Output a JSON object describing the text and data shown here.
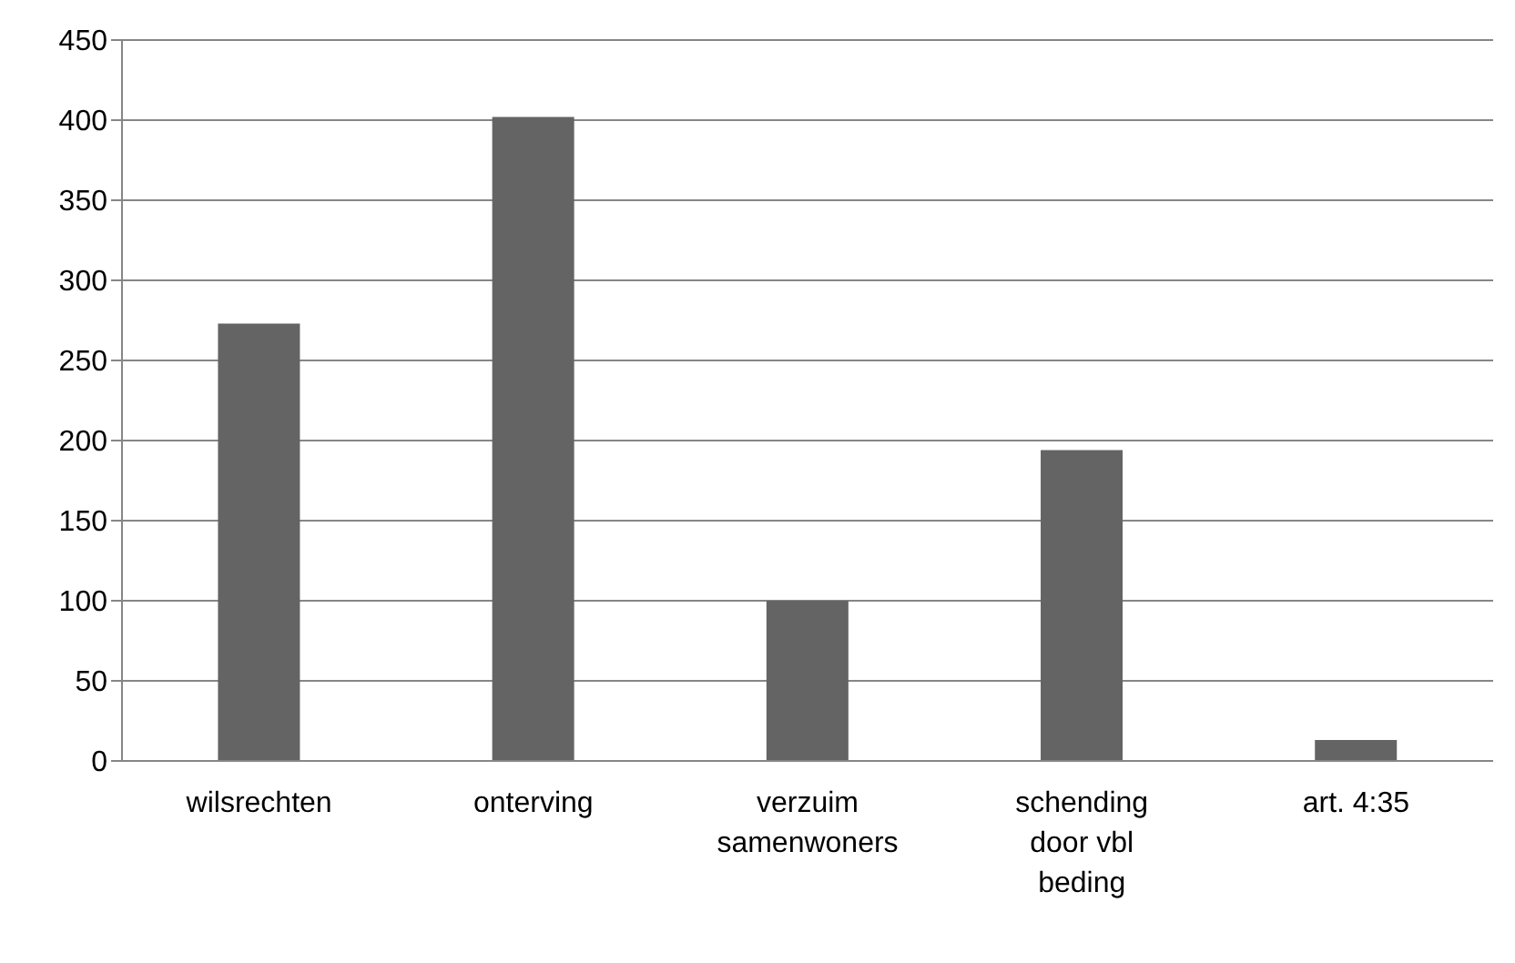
{
  "chart_data": {
    "type": "bar",
    "categories": [
      "wilsrechten",
      "onterving",
      "verzuim samenwoners",
      "schending door vbl beding",
      "art. 4:35"
    ],
    "values": [
      273,
      402,
      100,
      194,
      13
    ],
    "color": "#646464",
    "ylim": [
      0,
      450
    ],
    "yticks": [
      0,
      50,
      100,
      150,
      200,
      250,
      300,
      350,
      400,
      450
    ],
    "grid": "y",
    "legend": false
  }
}
